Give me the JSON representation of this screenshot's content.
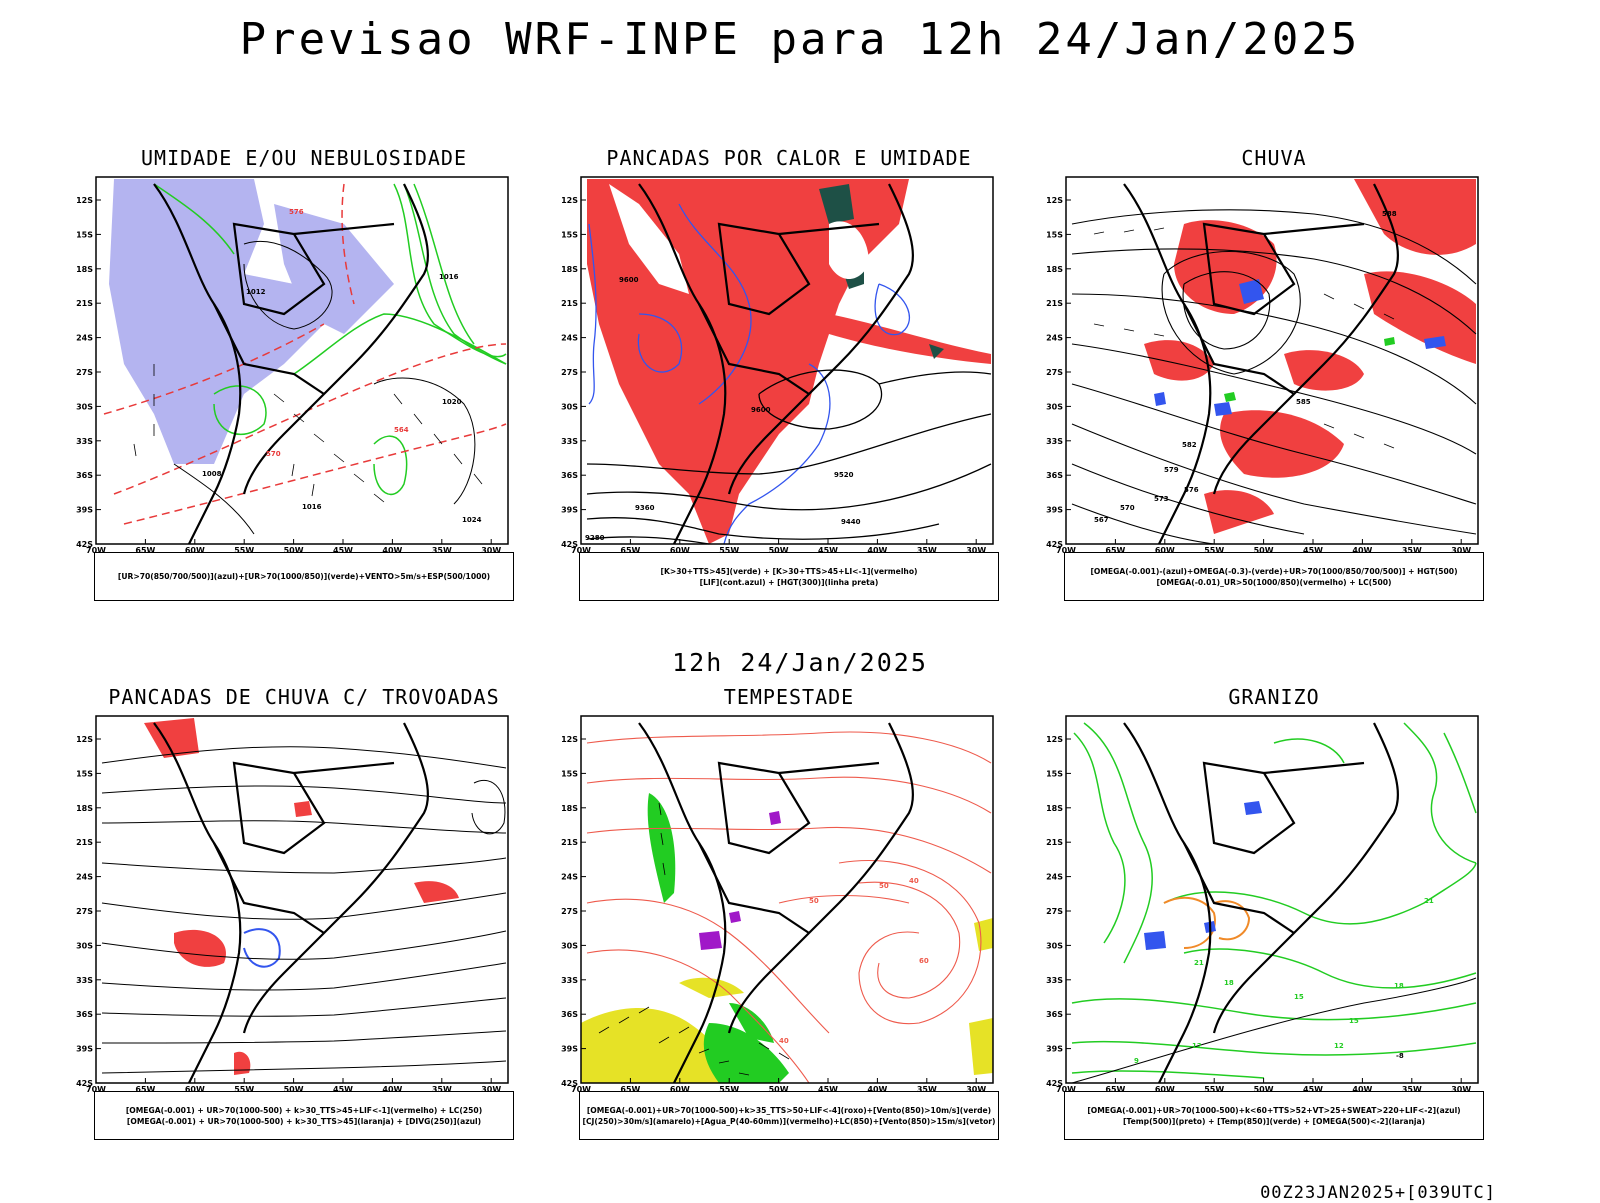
{
  "main_title": "Previsao WRF-INPE  para 12h 24/Jan/2025",
  "mid_title": "12h 24/Jan/2025",
  "footer": "00Z23JAN2025+[039UTC]",
  "axes": {
    "lat_labels": [
      "12S",
      "15S",
      "18S",
      "21S",
      "24S",
      "27S",
      "30S",
      "33S",
      "36S",
      "39S",
      "42S"
    ],
    "lon_labels": [
      "70W",
      "65W",
      "60W",
      "55W",
      "50W",
      "45W",
      "40W",
      "35W",
      "30W"
    ]
  },
  "panels": [
    {
      "id": "umidade",
      "title": "UMIDADE E/OU NEBULOSIDADE",
      "legend": [
        "[UR>70(850/700/500)](azul)+[UR>70(1000/850)](verde)+VENTO>5m/s+ESP(500/1000)"
      ],
      "contour_labels": [
        "1012",
        "1016",
        "1020",
        "1024",
        "1008",
        "1016",
        "576",
        "570",
        "564"
      ]
    },
    {
      "id": "pancadas-calor",
      "title": "PANCADAS POR CALOR E UMIDADE",
      "legend": [
        "[K>30+TTS>45](verde) + [K>30+TTS>45+LI<-1](vermelho)",
        "[LIF](cont.azul) + [HGT(300)](linha preta)"
      ],
      "contour_labels": [
        "9600",
        "9520",
        "9440",
        "9360",
        "9280",
        "9600"
      ]
    },
    {
      "id": "chuva",
      "title": "CHUVA",
      "legend": [
        "[OMEGA(-0.001)-(azul)+OMEGA(-0.3)-(verde)+UR>70(1000/850/700/500)] + HGT(500)",
        "[OMEGA(-0.01)_UR>50(1000/850)(vermelho) + LC(500)"
      ],
      "contour_labels": [
        "588",
        "585",
        "582",
        "579",
        "576",
        "573",
        "570",
        "567"
      ]
    },
    {
      "id": "pancadas-trovoadas",
      "title": "PANCADAS DE CHUVA C/ TROVOADAS",
      "legend": [
        "[OMEGA(-0.001) + UR>70(1000-500) + k>30_TTS>45+LIF<-1](vermelho) + LC(250)",
        "[OMEGA(-0.001) + UR>70(1000-500) + k>30_TTS>45](laranja) + [DIVG(250)](azul)"
      ],
      "contour_labels": []
    },
    {
      "id": "tempestade",
      "title": "TEMPESTADE",
      "legend": [
        "[OMEGA(-0.001)+UR>70(1000-500)+k>35_TTS>50+LIF<-4](roxo)+[Vento(850)>10m/s](verde)",
        "[CJ(250)>30m/s](amarelo)+[Agua_P(40-60mm)](vermelho)+LC(850)+[Vento(850)>15m/s](vetor)"
      ],
      "contour_labels": [
        "40",
        "50",
        "60",
        "50",
        "40"
      ]
    },
    {
      "id": "granizo",
      "title": "GRANIZO",
      "legend": [
        "[OMEGA(-0.001)+UR>70(1000-500)+k<60+TTS>52+VT>25+SWEAT>220+LIF<-2](azul)",
        "[Temp(500)](preto) + [Temp(850)](verde) + [OMEGA(500)<-2](laranja)"
      ],
      "contour_labels": [
        "-8",
        "21",
        "18",
        "15",
        "12",
        "9",
        "12",
        "15",
        "18",
        "21"
      ]
    }
  ],
  "colors": {
    "red_fill": "#f04040",
    "blue_fill": "#b4b4f0",
    "green_line": "#22cc22",
    "blue_line": "#3355ee",
    "red_dash": "#e83a3a",
    "yellow_fill": "#e6e226",
    "dark_green": "#1e5046",
    "orange_line": "#f08a28",
    "purple_fill": "#a018c8",
    "salmon_line": "#ee5a4c"
  }
}
